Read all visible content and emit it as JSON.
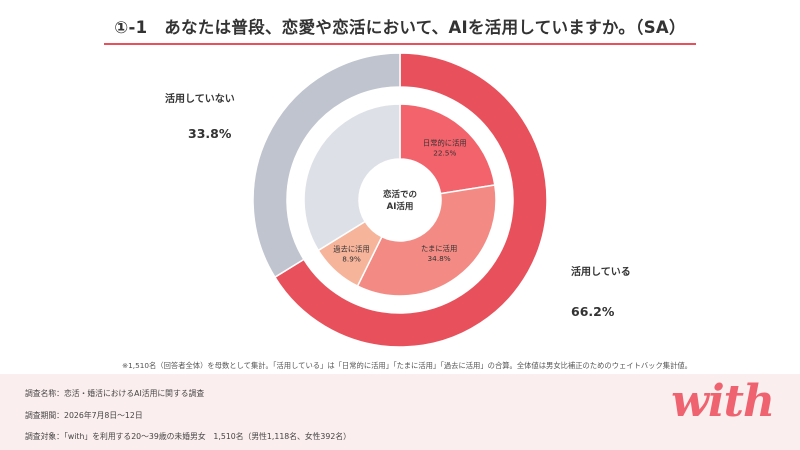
{
  "title": "①-1　あなたは普段、恋愛や恋活において、AIを活用していますか。（SA）",
  "colors": {
    "accent": "#e8505b",
    "outer_using": "#e8505b",
    "outer_not_using": "#bfc4cf",
    "inner_daily": "#f3636c",
    "inner_sometimes": "#f38b84",
    "inner_past": "#f6b49b",
    "inner_none": "#dde1e7"
  },
  "chart_data": {
    "type": "pie",
    "center_label": [
      "恋活での",
      "AI活用"
    ],
    "outer": [
      {
        "name": "活用している",
        "value": 66.2,
        "display": "66.2%"
      },
      {
        "name": "活用していない",
        "value": 33.8,
        "display": "33.8%"
      }
    ],
    "inner": [
      {
        "name": "日常的に活用",
        "value": 22.5,
        "display": "22.5%"
      },
      {
        "name": "たまに活用",
        "value": 34.8,
        "display": "34.8%"
      },
      {
        "name": "過去に活用",
        "value": 8.9,
        "display": "8.9%"
      },
      {
        "name": "",
        "value": 33.8,
        "display": ""
      }
    ]
  },
  "footnote": "※1,510名（回答者全体）を母数として集計。「活用している」は「日常的に活用」「たまに活用」「過去に活用」の合算。全体値は男女比補正のためのウェイトバック集計値。",
  "footer": {
    "survey_name": "調査名称：恋活・婚活におけるAI活用に関する調査",
    "survey_period": "調査期間：2026年7月8日〜12日",
    "survey_target": "調査対象：「with」を利用する20〜39歳の未婚男女　1,510名（男性1,118名、女性392名）"
  },
  "logo": "with"
}
